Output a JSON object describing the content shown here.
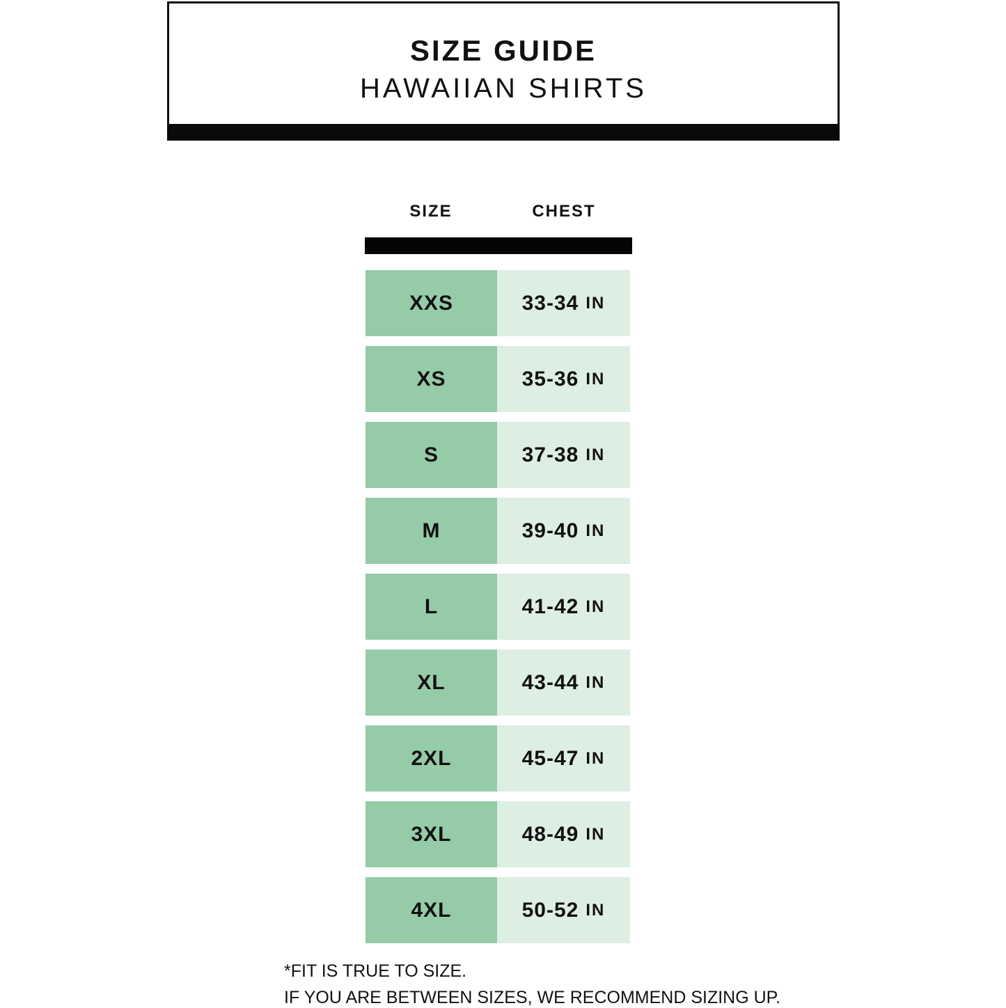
{
  "header": {
    "title": "SIZE GUIDE",
    "subtitle": "HAWAIIAN SHIRTS"
  },
  "table": {
    "columns": [
      "SIZE",
      "CHEST"
    ],
    "unit": "IN",
    "colors": {
      "size_cell": "#96cba8",
      "chest_cell": "#ddeee3"
    },
    "rows": [
      {
        "size": "XXS",
        "chest": "33-34"
      },
      {
        "size": "XS",
        "chest": "35-36"
      },
      {
        "size": "S",
        "chest": "37-38"
      },
      {
        "size": "M",
        "chest": "39-40"
      },
      {
        "size": "L",
        "chest": "41-42"
      },
      {
        "size": "XL",
        "chest": "43-44"
      },
      {
        "size": "2XL",
        "chest": "45-47"
      },
      {
        "size": "3XL",
        "chest": "48-49"
      },
      {
        "size": "4XL",
        "chest": "50-52"
      }
    ]
  },
  "notes": [
    "*FIT IS TRUE TO SIZE.",
    "IF YOU ARE BETWEEN SIZES, WE RECOMMEND SIZING UP."
  ]
}
